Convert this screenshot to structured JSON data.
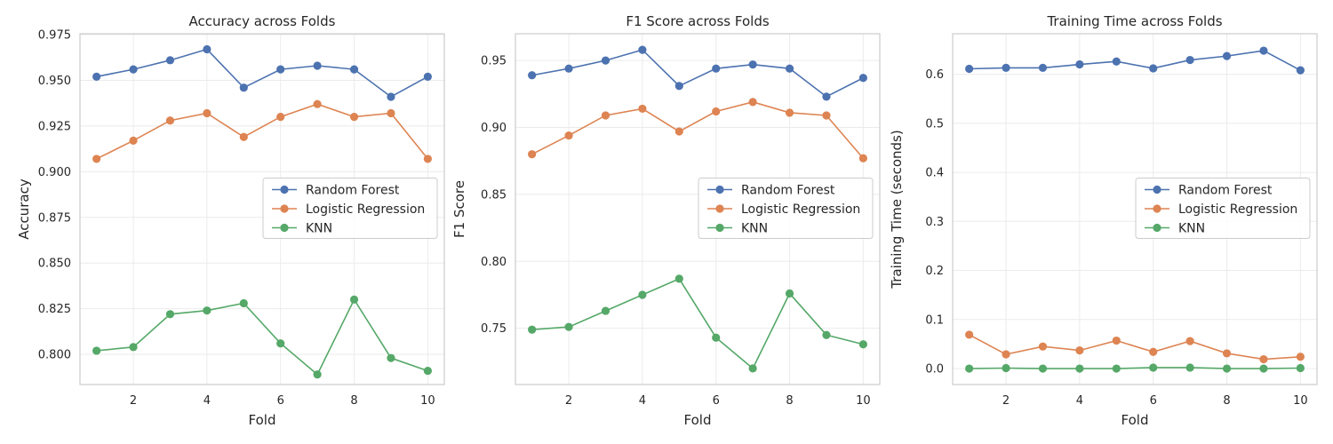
{
  "chart_data": [
    {
      "type": "line",
      "title": "Accuracy across Folds",
      "xlabel": "Fold",
      "ylabel": "Accuracy",
      "x": [
        1,
        2,
        3,
        4,
        5,
        6,
        7,
        8,
        9,
        10
      ],
      "xticks": [
        2,
        4,
        6,
        8,
        10
      ],
      "xlim": [
        0.55,
        10.45
      ],
      "ylim": [
        0.7835,
        0.9755
      ],
      "yticks": [
        0.8,
        0.825,
        0.85,
        0.875,
        0.9,
        0.925,
        0.95,
        0.975
      ],
      "ytick_labels": [
        "0.800",
        "0.825",
        "0.850",
        "0.875",
        "0.900",
        "0.925",
        "0.950",
        "0.975"
      ],
      "grid": true,
      "legend_position": "center-right",
      "series": [
        {
          "name": "Random Forest",
          "color": "#4c72b0",
          "values": [
            0.952,
            0.956,
            0.961,
            0.967,
            0.946,
            0.956,
            0.958,
            0.956,
            0.941,
            0.952
          ]
        },
        {
          "name": "Logistic Regression",
          "color": "#dd8452",
          "values": [
            0.907,
            0.917,
            0.928,
            0.932,
            0.919,
            0.93,
            0.937,
            0.93,
            0.932,
            0.907
          ]
        },
        {
          "name": "KNN",
          "color": "#55a868",
          "values": [
            0.802,
            0.804,
            0.822,
            0.824,
            0.828,
            0.806,
            0.789,
            0.83,
            0.798,
            0.791
          ]
        }
      ]
    },
    {
      "type": "line",
      "title": "F1 Score across Folds",
      "xlabel": "Fold",
      "ylabel": "F1 Score",
      "x": [
        1,
        2,
        3,
        4,
        5,
        6,
        7,
        8,
        9,
        10
      ],
      "xticks": [
        2,
        4,
        6,
        8,
        10
      ],
      "xlim": [
        0.55,
        10.45
      ],
      "ylim": [
        0.708,
        0.97
      ],
      "yticks": [
        0.75,
        0.8,
        0.85,
        0.9,
        0.95
      ],
      "ytick_labels": [
        "0.75",
        "0.80",
        "0.85",
        "0.90",
        "0.95"
      ],
      "grid": true,
      "legend_position": "center-right",
      "series": [
        {
          "name": "Random Forest",
          "color": "#4c72b0",
          "values": [
            0.939,
            0.944,
            0.95,
            0.958,
            0.931,
            0.944,
            0.947,
            0.944,
            0.923,
            0.937
          ]
        },
        {
          "name": "Logistic Regression",
          "color": "#dd8452",
          "values": [
            0.88,
            0.894,
            0.909,
            0.914,
            0.897,
            0.912,
            0.919,
            0.911,
            0.909,
            0.877
          ]
        },
        {
          "name": "KNN",
          "color": "#55a868",
          "values": [
            0.749,
            0.751,
            0.763,
            0.775,
            0.787,
            0.743,
            0.72,
            0.776,
            0.745,
            0.738
          ]
        }
      ]
    },
    {
      "type": "line",
      "title": "Training Time across Folds",
      "xlabel": "Fold",
      "ylabel": "Training Time (seconds)",
      "x": [
        1,
        2,
        3,
        4,
        5,
        6,
        7,
        8,
        9,
        10
      ],
      "xticks": [
        2,
        4,
        6,
        8,
        10
      ],
      "xlim": [
        0.55,
        10.45
      ],
      "ylim": [
        -0.0325,
        0.6825
      ],
      "yticks": [
        0.0,
        0.1,
        0.2,
        0.3,
        0.4,
        0.5,
        0.6
      ],
      "ytick_labels": [
        "0.0",
        "0.1",
        "0.2",
        "0.3",
        "0.4",
        "0.5",
        "0.6"
      ],
      "grid": true,
      "legend_position": "center-right",
      "series": [
        {
          "name": "Random Forest",
          "color": "#4c72b0",
          "values": [
            0.611,
            0.613,
            0.613,
            0.62,
            0.626,
            0.612,
            0.629,
            0.637,
            0.648,
            0.608
          ]
        },
        {
          "name": "Logistic Regression",
          "color": "#dd8452",
          "values": [
            0.069,
            0.029,
            0.045,
            0.037,
            0.057,
            0.034,
            0.056,
            0.031,
            0.019,
            0.024
          ]
        },
        {
          "name": "KNN",
          "color": "#55a868",
          "values": [
            0.0,
            0.001,
            0.0,
            0.0,
            0.0,
            0.002,
            0.002,
            0.0,
            0.0,
            0.001
          ]
        }
      ]
    }
  ]
}
